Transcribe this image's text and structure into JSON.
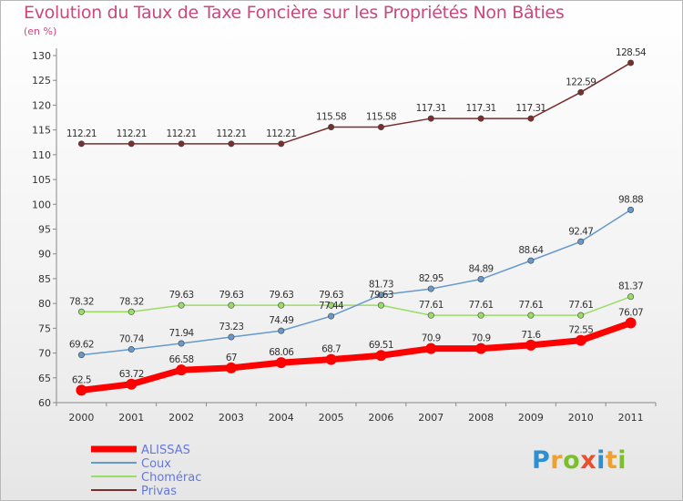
{
  "title": "Evolution du Taux de Taxe Foncière sur les Propriétés Non Bâties",
  "unit_label": "(en %)",
  "logo": {
    "letters": [
      "P",
      "r",
      "o",
      "x",
      "i",
      "t",
      "i"
    ],
    "colors": [
      "#2d8fd0",
      "#f0a030",
      "#7bbf2f",
      "#e8502f",
      "#2d8fd0",
      "#f0a030",
      "#7bbf2f"
    ]
  },
  "chart_data": {
    "type": "line",
    "title": "Evolution du Taux de Taxe Foncière sur les Propriétés Non Bâties",
    "ylabel": "(en %)",
    "xlabel": "",
    "x": [
      "2000",
      "2001",
      "2002",
      "2003",
      "2004",
      "2005",
      "2006",
      "2007",
      "2008",
      "2009",
      "2010",
      "2011"
    ],
    "ylim": [
      60,
      130
    ],
    "yticks": [
      60,
      65,
      70,
      75,
      80,
      85,
      90,
      95,
      100,
      105,
      110,
      115,
      120,
      125,
      130
    ],
    "grid": false,
    "legend_position": "bottom-left",
    "series": [
      {
        "name": "ALISSAS",
        "color": "#ff0000",
        "values": [
          62.5,
          63.72,
          66.58,
          67,
          68.06,
          68.7,
          69.51,
          70.9,
          70.9,
          71.6,
          72.55,
          76.07
        ],
        "labels": [
          "62.5",
          "63.72",
          "66.58",
          "67",
          "68.06",
          "68.7",
          "69.51",
          "70.9",
          "70.9",
          "71.6",
          "72.55",
          "76.07"
        ]
      },
      {
        "name": "Coux",
        "color": "#6699cc",
        "values": [
          69.62,
          70.74,
          71.94,
          73.23,
          74.49,
          77.44,
          81.73,
          82.95,
          84.89,
          88.64,
          92.47,
          98.88
        ],
        "labels": [
          "69.62",
          "70.74",
          "71.94",
          "73.23",
          "74.49",
          "77.44",
          "81.73",
          "82.95",
          "84.89",
          "88.64",
          "92.47",
          "98.88"
        ]
      },
      {
        "name": "Chomérac",
        "color": "#99dd66",
        "values": [
          78.32,
          78.32,
          79.63,
          79.63,
          79.63,
          79.63,
          79.63,
          77.61,
          77.61,
          77.61,
          77.61,
          81.37
        ],
        "labels": [
          "78.32",
          "78.32",
          "79.63",
          "79.63",
          "79.63",
          "79.63",
          "79.63",
          "77.61",
          "77.61",
          "77.61",
          "77.61",
          "81.37"
        ]
      },
      {
        "name": "Privas",
        "color": "#7a2e2e",
        "values": [
          112.21,
          112.21,
          112.21,
          112.21,
          112.21,
          115.58,
          115.58,
          117.31,
          117.31,
          117.31,
          122.59,
          128.54
        ],
        "labels": [
          "112.21",
          "112.21",
          "112.21",
          "112.21",
          "112.21",
          "115.58",
          "115.58",
          "117.31",
          "117.31",
          "117.31",
          "122.59",
          "128.54"
        ]
      }
    ]
  }
}
